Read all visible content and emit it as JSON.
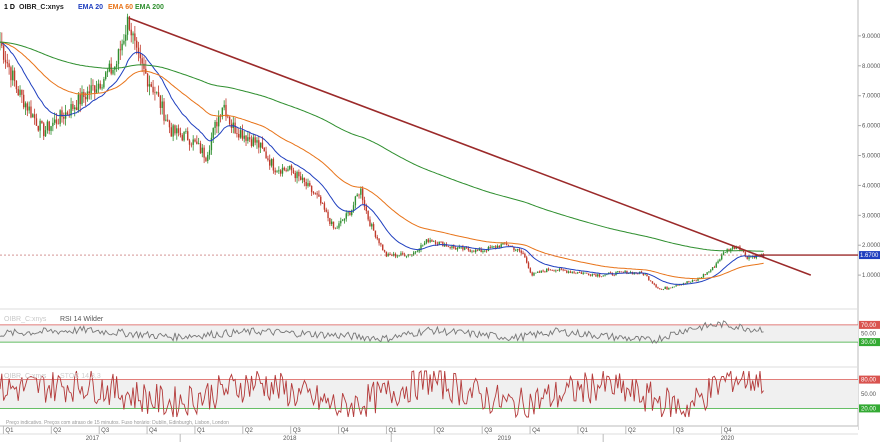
{
  "header": {
    "interval": "1 D",
    "symbol": "OIBR_C:xnys",
    "legend": [
      {
        "label": "EMA 20",
        "color": "#1f3fbf"
      },
      {
        "label": "EMA 60",
        "color": "#e8741a"
      },
      {
        "label": "EMA 200",
        "color": "#2f8f2f"
      }
    ]
  },
  "last_price_label": "1.6700",
  "rsi_panel": {
    "title_symbol": "OIBR_C:xnys",
    "title": "RSI 14 Wilder",
    "ticks": [
      "70.00",
      "50.00",
      "30.00"
    ]
  },
  "stoch_panel": {
    "title_symbol": "OIBR_C:xnys",
    "title": "STOC 14,3,3",
    "ticks": [
      "80.00",
      "50.00",
      "20.00"
    ]
  },
  "footer": {
    "note": "Preço indicativo. Preços com atraso de 15 minutos.   Fuso horário: Dublin, Edinburgh, Lisbon, London"
  },
  "colors": {
    "price_up": "#2f8f2f",
    "price_down": "#c0392b",
    "trendline": "#9b2a2a",
    "rsi_line": "#777777",
    "stoch_k": "#b33a3a",
    "stoch_d": "#d8a0a0",
    "band_upper": "#d9534f",
    "band_lower": "#33aa33"
  },
  "chart_data": [
    {
      "type": "candlestick",
      "y_ticks": [
        "1.0000",
        "2.0000",
        "3.0000",
        "4.0000",
        "5.0000",
        "6.0000",
        "7.0000",
        "8.0000",
        "9.0000"
      ],
      "ylim": [
        0,
        9.8
      ],
      "x_quarters": [
        "Q1",
        "Q2",
        "Q3",
        "Q4",
        "Q1",
        "Q2",
        "Q3",
        "Q4",
        "Q1",
        "Q2",
        "Q3",
        "Q4",
        "Q1",
        "Q2",
        "Q3",
        "Q4"
      ],
      "x_years": [
        "2017",
        "2018",
        "2019",
        "2020"
      ],
      "reference_level": 1.67,
      "trendline": [
        {
          "x": 0.15,
          "y": 9.6
        },
        {
          "x": 0.945,
          "y": 1.0
        }
      ],
      "close_path": [
        [
          0,
          8.8
        ],
        [
          0.02,
          7.2
        ],
        [
          0.05,
          5.8
        ],
        [
          0.08,
          6.5
        ],
        [
          0.11,
          7.3
        ],
        [
          0.135,
          8.0
        ],
        [
          0.15,
          9.6
        ],
        [
          0.16,
          8.2
        ],
        [
          0.18,
          7.2
        ],
        [
          0.2,
          5.8
        ],
        [
          0.22,
          5.6
        ],
        [
          0.24,
          5.0
        ],
        [
          0.26,
          6.8
        ],
        [
          0.27,
          6.0
        ],
        [
          0.3,
          5.4
        ],
        [
          0.32,
          4.6
        ],
        [
          0.34,
          4.5
        ],
        [
          0.37,
          3.6
        ],
        [
          0.39,
          2.5
        ],
        [
          0.41,
          3.2
        ],
        [
          0.42,
          3.9
        ],
        [
          0.43,
          2.8
        ],
        [
          0.45,
          1.65
        ],
        [
          0.48,
          1.7
        ],
        [
          0.5,
          2.2
        ],
        [
          0.53,
          1.9
        ],
        [
          0.56,
          1.8
        ],
        [
          0.59,
          2.05
        ],
        [
          0.61,
          1.7
        ],
        [
          0.62,
          1.0
        ],
        [
          0.64,
          1.2
        ],
        [
          0.67,
          1.1
        ],
        [
          0.7,
          1.0
        ],
        [
          0.73,
          1.1
        ],
        [
          0.75,
          1.05
        ],
        [
          0.77,
          0.5
        ],
        [
          0.79,
          0.7
        ],
        [
          0.81,
          0.8
        ],
        [
          0.83,
          1.2
        ],
        [
          0.845,
          1.8
        ],
        [
          0.86,
          2.0
        ],
        [
          0.87,
          1.6
        ],
        [
          0.89,
          1.67
        ]
      ]
    },
    {
      "type": "line",
      "title": "RSI 14 Wilder",
      "ylim": [
        0,
        100
      ],
      "y_ticks": [
        70,
        50,
        30
      ],
      "bands": [
        30,
        70
      ],
      "pattern": [
        [
          0,
          50
        ],
        [
          0.1,
          58
        ],
        [
          0.2,
          42
        ],
        [
          0.3,
          55
        ],
        [
          0.4,
          45
        ],
        [
          0.45,
          38
        ],
        [
          0.5,
          58
        ],
        [
          0.6,
          40
        ],
        [
          0.65,
          55
        ],
        [
          0.76,
          33
        ],
        [
          0.8,
          60
        ],
        [
          0.84,
          72
        ],
        [
          0.88,
          60
        ],
        [
          0.9,
          62
        ]
      ]
    },
    {
      "type": "line",
      "title": "STOC 14,3,3",
      "ylim": [
        0,
        100
      ],
      "y_ticks": [
        80,
        50,
        20
      ],
      "bands": [
        20,
        80
      ],
      "pattern": [
        [
          0,
          60
        ],
        [
          0.1,
          70
        ],
        [
          0.2,
          30
        ],
        [
          0.3,
          75
        ],
        [
          0.4,
          20
        ],
        [
          0.5,
          80
        ],
        [
          0.6,
          25
        ],
        [
          0.7,
          70
        ],
        [
          0.8,
          20
        ],
        [
          0.85,
          85
        ],
        [
          0.9,
          80
        ]
      ]
    }
  ]
}
